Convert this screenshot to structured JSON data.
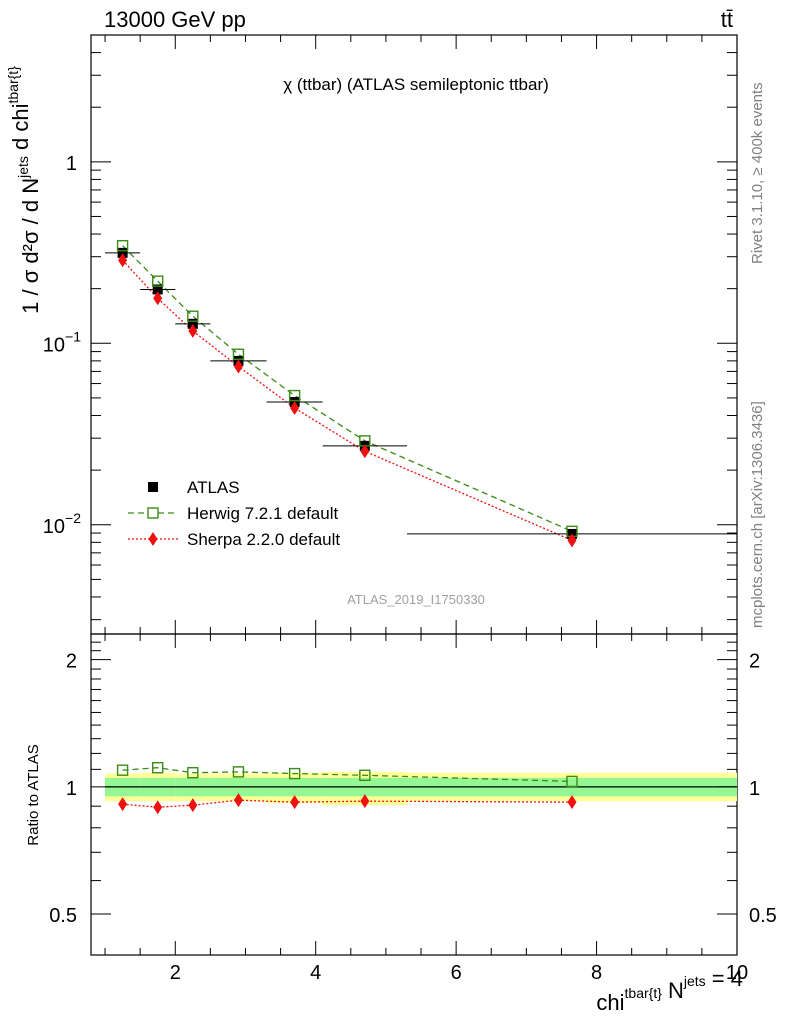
{
  "header": {
    "energy_label": "13000 GeV pp",
    "process_label": "tt̄"
  },
  "side": {
    "rivet_label": "Rivet 3.1.10, ≥ 400k events",
    "mcplots_label": "mcplots.cern.ch [arXiv:1306.3436]"
  },
  "chart_data": [
    {
      "type": "scatter",
      "panel": "main",
      "title": "χ (ttbar) (ATLAS semileptonic ttbar)",
      "analysis_label": "ATLAS_2019_I1750330",
      "ylabel": "1 / σ d²σ / d N^jets d chi^tbar{t}",
      "yscale": "log",
      "ylim": [
        0.0025,
        5.0
      ],
      "y_tick_labels": [
        "10^-2",
        "10^-1",
        "1"
      ],
      "legend": [
        {
          "key": "atlas",
          "label": "ATLAS"
        },
        {
          "key": "herwig",
          "label": "Herwig 7.2.1 default"
        },
        {
          "key": "sherpa",
          "label": "Sherpa 2.2.0 default"
        }
      ],
      "x": [
        1.25,
        1.75,
        2.25,
        2.9,
        3.7,
        4.7,
        7.65
      ],
      "xerr_edges": [
        [
          1.0,
          1.5
        ],
        [
          1.5,
          2.0
        ],
        [
          2.0,
          2.5
        ],
        [
          2.5,
          3.3
        ],
        [
          3.3,
          4.1
        ],
        [
          4.1,
          5.3
        ],
        [
          5.3,
          10.0
        ]
      ],
      "series": [
        {
          "name": "ATLAS",
          "values": [
            0.315,
            0.198,
            0.128,
            0.08,
            0.0475,
            0.0272,
            0.0089
          ]
        },
        {
          "name": "Herwig 7.2.1 default",
          "values": [
            0.345,
            0.22,
            0.141,
            0.087,
            0.0515,
            0.029,
            0.0092
          ]
        },
        {
          "name": "Sherpa 2.2.0 default",
          "values": [
            0.287,
            0.177,
            0.117,
            0.0745,
            0.044,
            0.0254,
            0.0082
          ]
        }
      ]
    },
    {
      "type": "line",
      "panel": "ratio",
      "ylabel": "Ratio to ATLAS",
      "xlabel": "chi^tbar{t} N^jets = 4",
      "xlim": [
        0.8,
        10.0
      ],
      "ylim": [
        0.4,
        2.3
      ],
      "x_ticks": [
        2,
        4,
        6,
        8,
        10
      ],
      "y_ticks": [
        0.5,
        1,
        2
      ],
      "x": [
        1.25,
        1.75,
        2.25,
        2.9,
        3.7,
        4.7,
        7.65
      ],
      "series": [
        {
          "name": "Herwig 7.2.1 default",
          "values": [
            1.095,
            1.11,
            1.08,
            1.085,
            1.075,
            1.065,
            1.03
          ]
        },
        {
          "name": "Sherpa 2.2.0 default",
          "values": [
            0.91,
            0.895,
            0.905,
            0.93,
            0.92,
            0.925,
            0.92
          ]
        }
      ],
      "band_edges": [
        1.0,
        1.5,
        2.0,
        2.5,
        3.3,
        4.1,
        5.3,
        10.0
      ],
      "band_stat": [
        [
          0.95,
          1.05
        ],
        [
          0.95,
          1.05
        ],
        [
          0.95,
          1.05
        ],
        [
          0.95,
          1.05
        ],
        [
          0.95,
          1.05
        ],
        [
          0.95,
          1.05
        ],
        [
          0.95,
          1.05
        ]
      ],
      "band_total": [
        [
          0.925,
          1.075
        ],
        [
          0.925,
          1.08
        ],
        [
          0.925,
          1.075
        ],
        [
          0.925,
          1.075
        ],
        [
          0.915,
          1.08
        ],
        [
          0.905,
          1.085
        ],
        [
          0.925,
          1.08
        ]
      ]
    }
  ],
  "colors": {
    "atlas": "#000000",
    "herwig": "#3a8c17",
    "sherpa": "#ee1111",
    "band_stat": "#93f793",
    "band_total": "#ffff99",
    "analysis_label": "#a0a0a0",
    "side_text": "#808080"
  }
}
